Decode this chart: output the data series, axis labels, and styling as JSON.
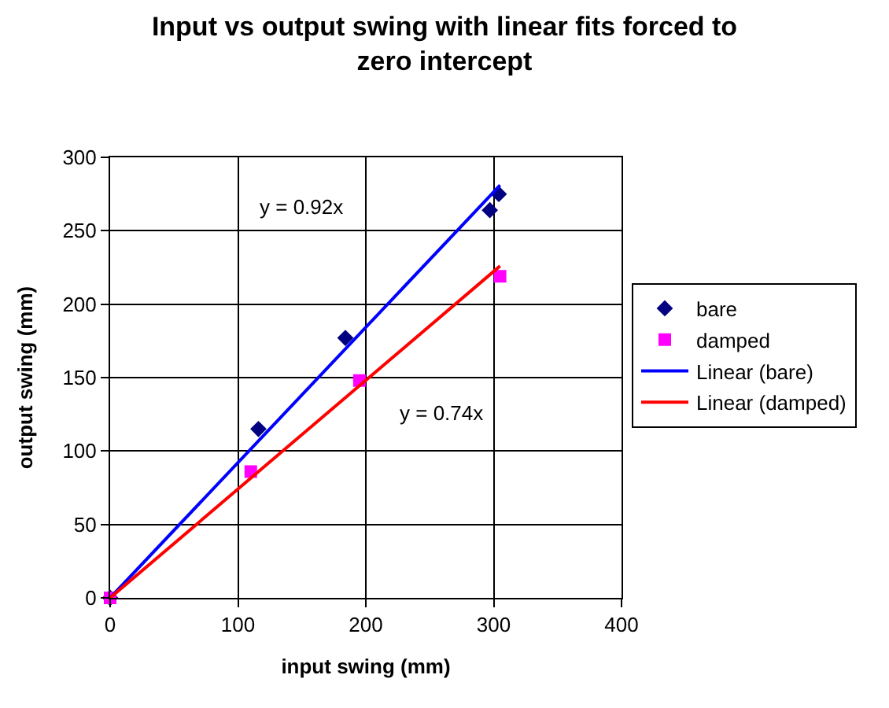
{
  "chart_data": {
    "type": "scatter",
    "title": "Input vs output swing with linear fits forced to zero intercept",
    "xlabel": "input swing (mm)",
    "ylabel": "output swing (mm)",
    "series": [
      {
        "name": "bare",
        "color": "#000080",
        "marker": "diamond",
        "x": [
          0,
          116,
          184,
          297,
          304
        ],
        "values": [
          0,
          115,
          177,
          264,
          275
        ]
      },
      {
        "name": "damped",
        "color": "#ff00ff",
        "marker": "square",
        "x": [
          0,
          110,
          195,
          305
        ],
        "values": [
          0,
          86,
          148,
          219
        ]
      },
      {
        "name": "Linear (bare)",
        "type": "line",
        "color": "#0000ff",
        "marker": "none",
        "line_style": "solid",
        "x": [
          0,
          305
        ],
        "values": [
          0,
          281
        ]
      },
      {
        "name": "Linear (damped)",
        "type": "line",
        "color": "#ff0000",
        "marker": "none",
        "line_style": "solid",
        "x": [
          0,
          305
        ],
        "values": [
          0,
          226
        ]
      }
    ],
    "annotations": [
      "y = 0.92x",
      "y = 0.74x"
    ],
    "xlim": [
      0,
      400
    ],
    "xticks": [
      0,
      100,
      200,
      300,
      400
    ],
    "ylim": [
      0,
      300
    ],
    "yticks": [
      0,
      50,
      100,
      150,
      200,
      250,
      300
    ],
    "grid": true,
    "legend": "right"
  }
}
